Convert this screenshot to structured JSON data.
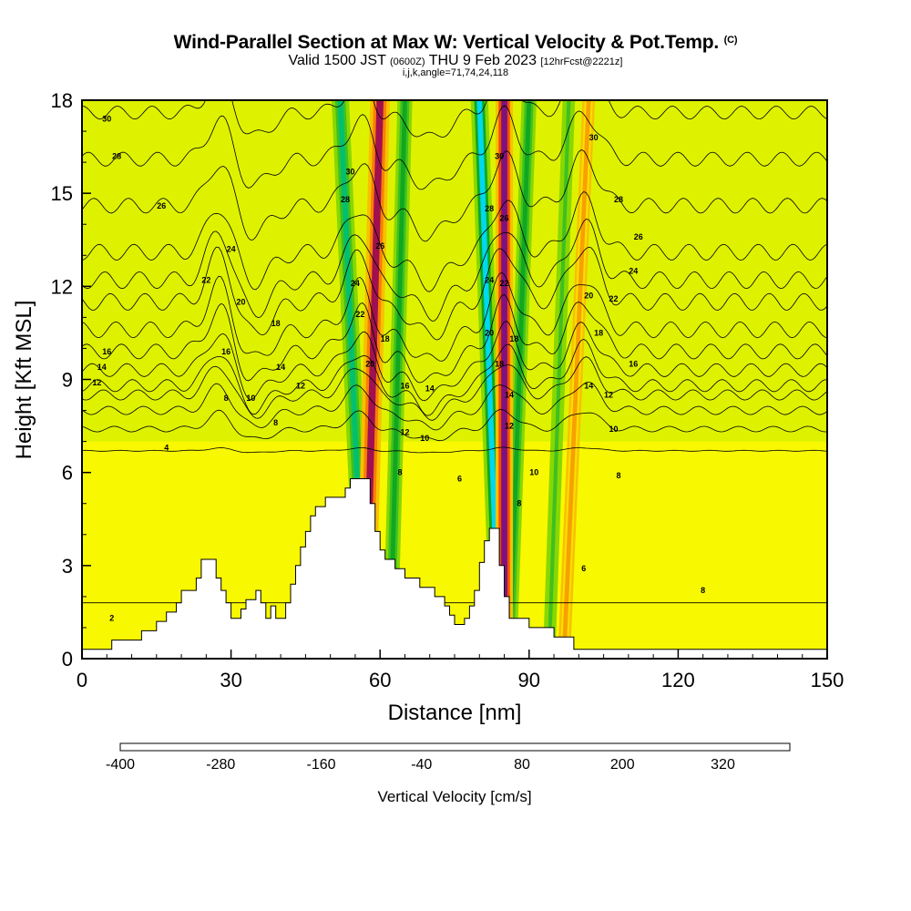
{
  "header": {
    "title": "Wind-Parallel Section at Max W: Vertical Velocity & Pot.Temp.",
    "copyright": "(C)",
    "valid_prefix": "Valid 1500 JST",
    "valid_zulu": "(0600Z)",
    "valid_date": "THU 9 Feb 2023",
    "forecast_info": "[12hrFcst@2221z]",
    "grid_info": "i,j,k,angle=71,74,24,118"
  },
  "chart_data": {
    "type": "heatmap",
    "xlabel": "Distance [nm]",
    "ylabel": "Height [Kft MSL]",
    "xlim": [
      0,
      150
    ],
    "ylim": [
      0,
      18
    ],
    "x_ticks": [
      0,
      30,
      60,
      90,
      120,
      150
    ],
    "y_ticks": [
      0,
      3,
      6,
      9,
      12,
      15,
      18
    ],
    "colorbar": {
      "title": "Vertical Velocity [cm/s]",
      "levels": [
        -400,
        -360,
        -320,
        -280,
        -240,
        -200,
        -160,
        -120,
        -80,
        -40,
        0,
        40,
        80,
        120,
        160,
        200,
        240,
        280,
        320,
        360,
        400
      ],
      "tick_labels": [
        "-400",
        "-280",
        "-160",
        "-40",
        "80",
        "200",
        "320"
      ],
      "colors": [
        "#0000ee",
        "#0050f0",
        "#0090f0",
        "#00d8f0",
        "#00d0b0",
        "#00c070",
        "#10a820",
        "#40c020",
        "#88d800",
        "#c8ec00",
        "#f8f800",
        "#f8e000",
        "#f8c000",
        "#f8a000",
        "#f88000",
        "#f05000",
        "#e81800",
        "#d00020",
        "#a01050",
        "#801080"
      ]
    },
    "terrain": [
      [
        0,
        0.3
      ],
      [
        6,
        0.3
      ],
      [
        6,
        0.6
      ],
      [
        12,
        0.6
      ],
      [
        12,
        0.9
      ],
      [
        15,
        0.9
      ],
      [
        15,
        1.2
      ],
      [
        17,
        1.2
      ],
      [
        17,
        1.5
      ],
      [
        19,
        1.5
      ],
      [
        19,
        1.8
      ],
      [
        20,
        1.8
      ],
      [
        20,
        2.2
      ],
      [
        23,
        2.2
      ],
      [
        23,
        2.6
      ],
      [
        24,
        2.6
      ],
      [
        24,
        3.2
      ],
      [
        27,
        3.2
      ],
      [
        27,
        2.6
      ],
      [
        28,
        2.6
      ],
      [
        28,
        2.2
      ],
      [
        29,
        2.2
      ],
      [
        29,
        1.8
      ],
      [
        30,
        1.8
      ],
      [
        30,
        1.3
      ],
      [
        32,
        1.3
      ],
      [
        32,
        1.6
      ],
      [
        33,
        1.6
      ],
      [
        33,
        1.9
      ],
      [
        35,
        1.9
      ],
      [
        35,
        2.2
      ],
      [
        36,
        2.2
      ],
      [
        36,
        1.8
      ],
      [
        37,
        1.8
      ],
      [
        37,
        1.3
      ],
      [
        38,
        1.3
      ],
      [
        38,
        1.7
      ],
      [
        39,
        1.7
      ],
      [
        39,
        1.3
      ],
      [
        41,
        1.3
      ],
      [
        41,
        1.8
      ],
      [
        42,
        1.8
      ],
      [
        42,
        2.4
      ],
      [
        43,
        2.4
      ],
      [
        43,
        3.0
      ],
      [
        44,
        3.0
      ],
      [
        44,
        3.6
      ],
      [
        45,
        3.6
      ],
      [
        45,
        4.1
      ],
      [
        46,
        4.1
      ],
      [
        46,
        4.6
      ],
      [
        47,
        4.6
      ],
      [
        47,
        4.9
      ],
      [
        49,
        4.9
      ],
      [
        49,
        5.2
      ],
      [
        53,
        5.2
      ],
      [
        53,
        5.5
      ],
      [
        54,
        5.5
      ],
      [
        54,
        5.8
      ],
      [
        58,
        5.8
      ],
      [
        58,
        5.0
      ],
      [
        59,
        5.0
      ],
      [
        59,
        4.1
      ],
      [
        60,
        4.1
      ],
      [
        60,
        3.5
      ],
      [
        61,
        3.5
      ],
      [
        61,
        3.2
      ],
      [
        63,
        3.2
      ],
      [
        63,
        2.9
      ],
      [
        65,
        2.9
      ],
      [
        65,
        2.6
      ],
      [
        68,
        2.6
      ],
      [
        68,
        2.3
      ],
      [
        71,
        2.3
      ],
      [
        71,
        2.0
      ],
      [
        73,
        2.0
      ],
      [
        73,
        1.7
      ],
      [
        74,
        1.7
      ],
      [
        74,
        1.4
      ],
      [
        75,
        1.4
      ],
      [
        75,
        1.1
      ],
      [
        77,
        1.1
      ],
      [
        77,
        1.3
      ],
      [
        78,
        1.3
      ],
      [
        78,
        1.7
      ],
      [
        79,
        1.7
      ],
      [
        79,
        2.2
      ],
      [
        80,
        2.2
      ],
      [
        80,
        3.1
      ],
      [
        81,
        3.1
      ],
      [
        81,
        3.8
      ],
      [
        82,
        3.8
      ],
      [
        82,
        4.2
      ],
      [
        84,
        4.2
      ],
      [
        84,
        3.0
      ],
      [
        85,
        3.0
      ],
      [
        85,
        2.0
      ],
      [
        86,
        2.0
      ],
      [
        86,
        1.3
      ],
      [
        90,
        1.3
      ],
      [
        90,
        1.0
      ],
      [
        95,
        1.0
      ],
      [
        95,
        0.7
      ],
      [
        99,
        0.7
      ],
      [
        99,
        0.3
      ],
      [
        150,
        0.3
      ]
    ],
    "theta_contours": [
      {
        "label": "2",
        "base": 1.8,
        "amp": 0.0
      },
      {
        "label": "4",
        "base": 6.7,
        "amp": 0.1
      },
      {
        "label": "6",
        "base": 7.4,
        "amp": 0.6
      },
      {
        "label": "8",
        "base": 8.0,
        "amp": 0.9
      },
      {
        "label": "10",
        "base": 8.5,
        "amp": 1.1
      },
      {
        "label": "12",
        "base": 8.8,
        "amp": 1.3
      },
      {
        "label": "14",
        "base": 9.3,
        "amp": 1.4
      },
      {
        "label": "16",
        "base": 9.9,
        "amp": 1.6
      },
      {
        "label": "18",
        "base": 10.6,
        "amp": 1.7
      },
      {
        "label": "20",
        "base": 11.5,
        "amp": 1.8
      },
      {
        "label": "22",
        "base": 12.2,
        "amp": 1.8
      },
      {
        "label": "24",
        "base": 13.1,
        "amp": 1.7
      },
      {
        "label": "26",
        "base": 14.6,
        "amp": 1.6
      },
      {
        "label": "28",
        "base": 16.1,
        "amp": 1.5
      },
      {
        "label": "30",
        "base": 17.6,
        "amp": 1.4
      }
    ],
    "contour_labels": [
      {
        "text": "30",
        "x": 5,
        "y": 17.4
      },
      {
        "text": "28",
        "x": 7,
        "y": 16.2
      },
      {
        "text": "26",
        "x": 16,
        "y": 14.6
      },
      {
        "text": "24",
        "x": 30,
        "y": 13.2
      },
      {
        "text": "22",
        "x": 25,
        "y": 12.2
      },
      {
        "text": "20",
        "x": 32,
        "y": 11.5
      },
      {
        "text": "18",
        "x": 39,
        "y": 10.8
      },
      {
        "text": "16",
        "x": 5,
        "y": 9.9
      },
      {
        "text": "16",
        "x": 29,
        "y": 9.9
      },
      {
        "text": "14",
        "x": 4,
        "y": 9.4
      },
      {
        "text": "14",
        "x": 40,
        "y": 9.4
      },
      {
        "text": "12",
        "x": 3,
        "y": 8.9
      },
      {
        "text": "12",
        "x": 44,
        "y": 8.8
      },
      {
        "text": "10",
        "x": 34,
        "y": 8.4
      },
      {
        "text": "8",
        "x": 29,
        "y": 8.4
      },
      {
        "text": "8",
        "x": 39,
        "y": 7.6
      },
      {
        "text": "4",
        "x": 17,
        "y": 6.8
      },
      {
        "text": "2",
        "x": 6,
        "y": 1.3
      },
      {
        "text": "30",
        "x": 54,
        "y": 15.7
      },
      {
        "text": "28",
        "x": 53,
        "y": 14.8
      },
      {
        "text": "26",
        "x": 60,
        "y": 13.3
      },
      {
        "text": "24",
        "x": 55,
        "y": 12.1
      },
      {
        "text": "22",
        "x": 56,
        "y": 11.1
      },
      {
        "text": "18",
        "x": 61,
        "y": 10.3
      },
      {
        "text": "20",
        "x": 58,
        "y": 9.5
      },
      {
        "text": "16",
        "x": 65,
        "y": 8.8
      },
      {
        "text": "14",
        "x": 70,
        "y": 8.7
      },
      {
        "text": "12",
        "x": 65,
        "y": 7.3
      },
      {
        "text": "10",
        "x": 69,
        "y": 7.1
      },
      {
        "text": "8",
        "x": 64,
        "y": 6.0
      },
      {
        "text": "6",
        "x": 76,
        "y": 5.8
      },
      {
        "text": "30",
        "x": 84,
        "y": 16.2
      },
      {
        "text": "28",
        "x": 82,
        "y": 14.5
      },
      {
        "text": "26",
        "x": 85,
        "y": 14.2
      },
      {
        "text": "24",
        "x": 82,
        "y": 12.2
      },
      {
        "text": "22",
        "x": 85,
        "y": 12.1
      },
      {
        "text": "20",
        "x": 82,
        "y": 10.5
      },
      {
        "text": "18",
        "x": 87,
        "y": 10.3
      },
      {
        "text": "18",
        "x": 84,
        "y": 9.5
      },
      {
        "text": "14",
        "x": 86,
        "y": 8.5
      },
      {
        "text": "12",
        "x": 86,
        "y": 7.5
      },
      {
        "text": "10",
        "x": 91,
        "y": 6.0
      },
      {
        "text": "8",
        "x": 88,
        "y": 5.0
      },
      {
        "text": "30",
        "x": 103,
        "y": 16.8
      },
      {
        "text": "28",
        "x": 108,
        "y": 14.8
      },
      {
        "text": "26",
        "x": 112,
        "y": 13.6
      },
      {
        "text": "24",
        "x": 111,
        "y": 12.5
      },
      {
        "text": "20",
        "x": 102,
        "y": 11.7
      },
      {
        "text": "22",
        "x": 107,
        "y": 11.6
      },
      {
        "text": "18",
        "x": 104,
        "y": 10.5
      },
      {
        "text": "16",
        "x": 111,
        "y": 9.5
      },
      {
        "text": "14",
        "x": 102,
        "y": 8.8
      },
      {
        "text": "12",
        "x": 106,
        "y": 8.5
      },
      {
        "text": "10",
        "x": 107,
        "y": 7.4
      },
      {
        "text": "8",
        "x": 108,
        "y": 5.9
      },
      {
        "text": "6",
        "x": 101,
        "y": 2.9
      },
      {
        "text": "8",
        "x": 125,
        "y": 2.2
      }
    ],
    "updraft_bands": [
      {
        "x_top": 60,
        "x_bottom": 57,
        "width": 4,
        "value": 320
      },
      {
        "x_top": 85,
        "x_bottom": 85,
        "width": 3.5,
        "value": 360
      },
      {
        "x_top": 102,
        "x_bottom": 97,
        "width": 2.5,
        "value": 120
      }
    ],
    "downdraft_bands": [
      {
        "x_top": 52,
        "x_bottom": 57,
        "width": 3.5,
        "value": -200
      },
      {
        "x_top": 65,
        "x_bottom": 62,
        "width": 3,
        "value": -160
      },
      {
        "x_top": 80,
        "x_bottom": 84,
        "width": 3.5,
        "value": -260
      },
      {
        "x_top": 90,
        "x_bottom": 86,
        "width": 3,
        "value": -160
      },
      {
        "x_top": 98,
        "x_bottom": 94,
        "width": 2.5,
        "value": -120
      }
    ]
  }
}
